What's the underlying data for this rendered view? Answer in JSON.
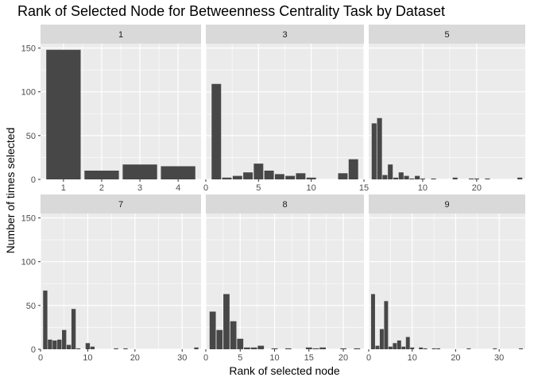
{
  "chart_data": {
    "type": "bar",
    "title": "Rank of Selected Node for Betweenness Centrality Task by Dataset",
    "xlabel": "Rank of selected node",
    "ylabel": "Number of times selected",
    "ylim": [
      0,
      155
    ],
    "yticks": [
      0,
      50,
      100,
      150
    ],
    "grid": true,
    "facets": [
      {
        "label": "1",
        "xlim": [
          0.4,
          4.6
        ],
        "xticks": [
          1,
          2,
          3,
          4
        ],
        "bar_width": 0.9,
        "x": [
          1,
          2,
          3,
          4
        ],
        "values": [
          148,
          10,
          17,
          15
        ]
      },
      {
        "label": "3",
        "xlim": [
          0,
          15
        ],
        "xticks": [
          0,
          5,
          10,
          15
        ],
        "bar_width": 0.9,
        "x": [
          1,
          2,
          3,
          4,
          5,
          6,
          7,
          8,
          9,
          10,
          13,
          14
        ],
        "values": [
          109,
          2,
          4,
          8,
          18,
          10,
          6,
          4,
          7,
          2,
          7,
          23
        ]
      },
      {
        "label": "5",
        "xlim": [
          0,
          29
        ],
        "xticks": [
          10,
          20
        ],
        "bar_width": 0.9,
        "x": [
          1,
          2,
          3,
          4,
          5,
          6,
          7,
          8,
          9,
          10,
          12,
          16,
          19,
          20,
          22,
          28
        ],
        "values": [
          64,
          70,
          5,
          17,
          2,
          8,
          4,
          1,
          4,
          1,
          1,
          2,
          1,
          1,
          1,
          2
        ]
      },
      {
        "label": "7",
        "xlim": [
          0,
          34
        ],
        "xticks": [
          0,
          10,
          20,
          30
        ],
        "bar_width": 0.9,
        "x": [
          1,
          2,
          3,
          4,
          5,
          6,
          7,
          8,
          10,
          11,
          16,
          18,
          33
        ],
        "values": [
          67,
          11,
          10,
          11,
          22,
          5,
          46,
          1,
          7,
          3,
          1,
          1,
          2
        ]
      },
      {
        "label": "8",
        "xlim": [
          0,
          23
        ],
        "xticks": [
          0,
          5,
          10,
          15,
          20
        ],
        "bar_width": 0.9,
        "x": [
          1,
          2,
          3,
          4,
          5,
          6,
          7,
          8,
          10,
          12,
          15,
          16,
          17,
          20,
          22
        ],
        "values": [
          43,
          22,
          63,
          32,
          12,
          2,
          2,
          4,
          1,
          1,
          2,
          1,
          2,
          1,
          1
        ]
      },
      {
        "label": "9",
        "xlim": [
          0,
          36
        ],
        "xticks": [
          0,
          10,
          20,
          30
        ],
        "bar_width": 0.9,
        "x": [
          1,
          2,
          3,
          4,
          5,
          6,
          7,
          8,
          9,
          10,
          12,
          13,
          15,
          16,
          23,
          29,
          35
        ],
        "values": [
          63,
          4,
          23,
          55,
          3,
          7,
          10,
          3,
          14,
          2,
          2,
          1,
          1,
          1,
          1,
          1,
          1
        ]
      }
    ]
  }
}
